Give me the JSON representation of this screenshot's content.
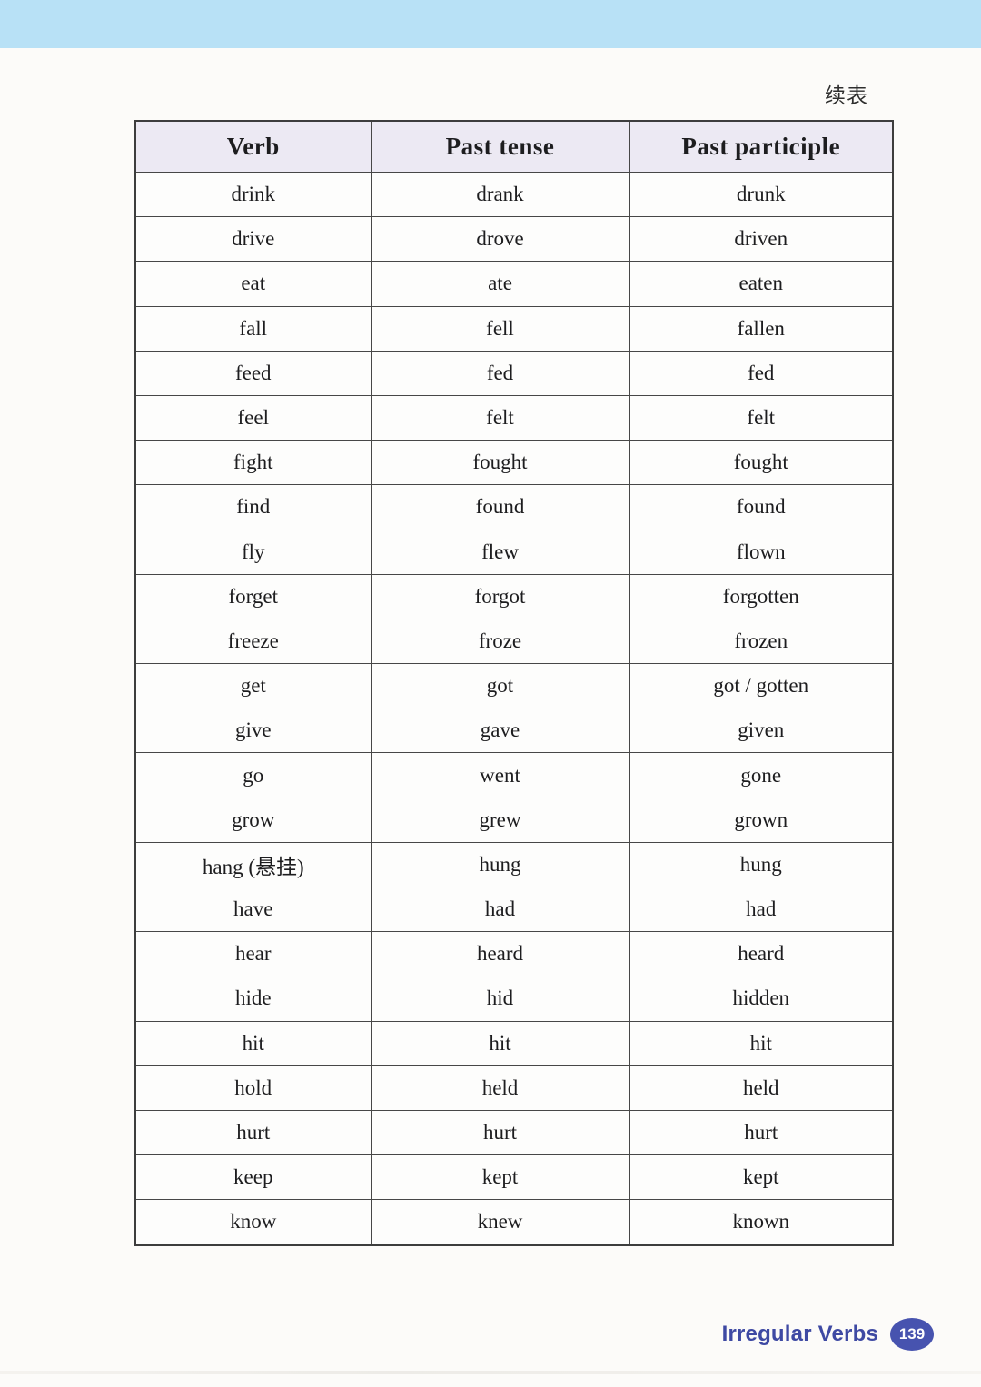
{
  "page": {
    "continued_label": "续表",
    "footer": {
      "title": "Irregular Verbs",
      "page_number": "139"
    }
  },
  "table": {
    "headers": [
      "Verb",
      "Past tense",
      "Past participle"
    ],
    "rows": [
      [
        "drink",
        "drank",
        "drunk"
      ],
      [
        "drive",
        "drove",
        "driven"
      ],
      [
        "eat",
        "ate",
        "eaten"
      ],
      [
        "fall",
        "fell",
        "fallen"
      ],
      [
        "feed",
        "fed",
        "fed"
      ],
      [
        "feel",
        "felt",
        "felt"
      ],
      [
        "fight",
        "fought",
        "fought"
      ],
      [
        "find",
        "found",
        "found"
      ],
      [
        "fly",
        "flew",
        "flown"
      ],
      [
        "forget",
        "forgot",
        "forgotten"
      ],
      [
        "freeze",
        "froze",
        "frozen"
      ],
      [
        "get",
        "got",
        "got / gotten"
      ],
      [
        "give",
        "gave",
        "given"
      ],
      [
        "go",
        "went",
        "gone"
      ],
      [
        "grow",
        "grew",
        "grown"
      ],
      [
        "hang (悬挂)",
        "hung",
        "hung"
      ],
      [
        "have",
        "had",
        "had"
      ],
      [
        "hear",
        "heard",
        "heard"
      ],
      [
        "hide",
        "hid",
        "hidden"
      ],
      [
        "hit",
        "hit",
        "hit"
      ],
      [
        "hold",
        "held",
        "held"
      ],
      [
        "hurt",
        "hurt",
        "hurt"
      ],
      [
        "keep",
        "kept",
        "kept"
      ],
      [
        "know",
        "knew",
        "known"
      ]
    ]
  },
  "colors": {
    "banner_blue": "#b8e1f6",
    "header_lavender": "#ece9f3",
    "accent_indigo": "#4753af",
    "border_gray": "#474747"
  }
}
